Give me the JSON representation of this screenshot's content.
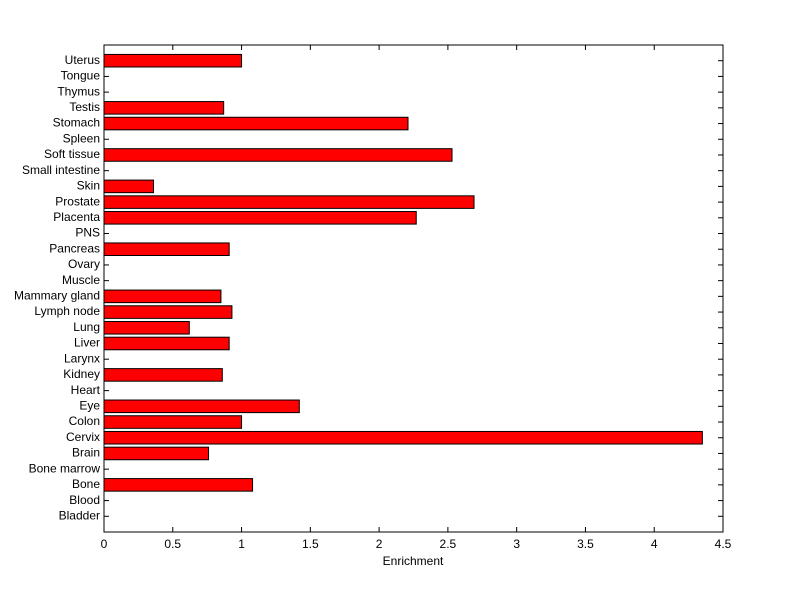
{
  "chart_data": {
    "type": "hbar",
    "x_label": "Enrichment",
    "categories": [
      "Bladder",
      "Blood",
      "Bone",
      "Bone marrow",
      "Brain",
      "Cervix",
      "Colon",
      "Eye",
      "Heart",
      "Kidney",
      "Larynx",
      "Liver",
      "Lung",
      "Lymph node",
      "Mammary gland",
      "Muscle",
      "Ovary",
      "Pancreas",
      "PNS",
      "Placenta",
      "Prostate",
      "Skin",
      "Small intestine",
      "Soft tissue",
      "Spleen",
      "Stomach",
      "Testis",
      "Thymus",
      "Tongue",
      "Uterus"
    ],
    "values": [
      0,
      0,
      1.08,
      0,
      0.76,
      4.35,
      1.0,
      1.42,
      0,
      0.86,
      0,
      0.91,
      0.62,
      0.93,
      0.85,
      0,
      0,
      0.91,
      0,
      2.27,
      2.69,
      0.36,
      0,
      2.53,
      0,
      2.21,
      0.87,
      0,
      0,
      1.0
    ],
    "color": "#ff0000",
    "xlim": [
      0,
      4.5
    ],
    "xticks": [
      0,
      0.5,
      1,
      1.5,
      2,
      2.5,
      3,
      3.5,
      4,
      4.5
    ]
  }
}
